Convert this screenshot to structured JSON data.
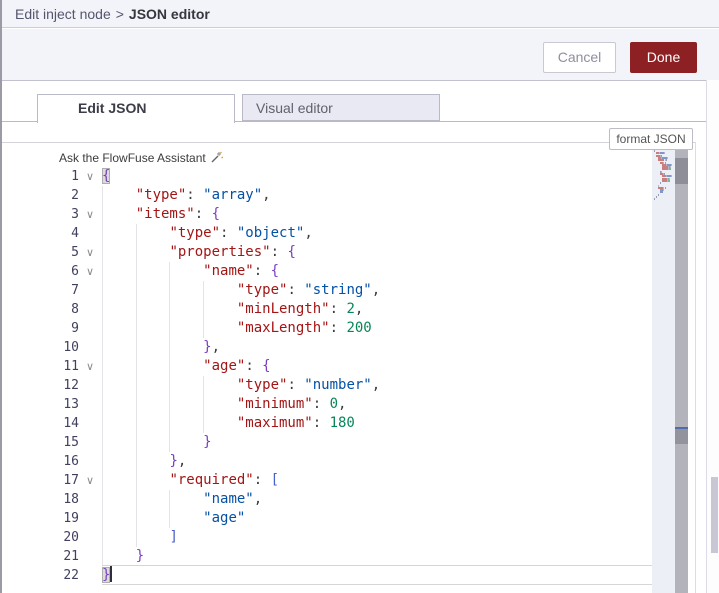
{
  "breadcrumb": {
    "parent": "Edit inject node",
    "separator": ">",
    "current": "JSON editor"
  },
  "toolbar": {
    "cancel": "Cancel",
    "done": "Done"
  },
  "tabs": {
    "edit_json": "Edit JSON",
    "visual_editor": "Visual editor"
  },
  "format_button": "format JSON",
  "assistant": {
    "hint": "Ask the FlowFuse Assistant"
  },
  "colors": {
    "accent_red": "#8C2023",
    "panel_bg": "#F3F4F9",
    "tab_inactive_bg": "#E8E9F2",
    "border": "#B9B9C7",
    "syntax_key": "#A31515",
    "syntax_string": "#0451A5",
    "syntax_number": "#098658",
    "syntax_brace": "#7A3FC0",
    "syntax_bracket": "#4660C4",
    "line_number": "#40405F"
  },
  "editor": {
    "cursor_line": 22,
    "lines": [
      {
        "n": 1,
        "fold": true,
        "indent": 0,
        "tokens": [
          {
            "c": "brace",
            "v": "{",
            "hl": true
          }
        ]
      },
      {
        "n": 2,
        "indent": 1,
        "tokens": [
          {
            "c": "key",
            "v": "\"type\""
          },
          {
            "c": "pun",
            "v": ": "
          },
          {
            "c": "str",
            "v": "\"array\""
          },
          {
            "c": "pun",
            "v": ","
          }
        ]
      },
      {
        "n": 3,
        "fold": true,
        "indent": 1,
        "tokens": [
          {
            "c": "key",
            "v": "\"items\""
          },
          {
            "c": "pun",
            "v": ": "
          },
          {
            "c": "brace",
            "v": "{"
          }
        ]
      },
      {
        "n": 4,
        "indent": 2,
        "tokens": [
          {
            "c": "key",
            "v": "\"type\""
          },
          {
            "c": "pun",
            "v": ": "
          },
          {
            "c": "str",
            "v": "\"object\""
          },
          {
            "c": "pun",
            "v": ","
          }
        ]
      },
      {
        "n": 5,
        "fold": true,
        "indent": 2,
        "tokens": [
          {
            "c": "key",
            "v": "\"properties\""
          },
          {
            "c": "pun",
            "v": ": "
          },
          {
            "c": "brace",
            "v": "{"
          }
        ]
      },
      {
        "n": 6,
        "fold": true,
        "indent": 3,
        "tokens": [
          {
            "c": "key",
            "v": "\"name\""
          },
          {
            "c": "pun",
            "v": ": "
          },
          {
            "c": "brace",
            "v": "{"
          }
        ]
      },
      {
        "n": 7,
        "indent": 4,
        "tokens": [
          {
            "c": "key",
            "v": "\"type\""
          },
          {
            "c": "pun",
            "v": ": "
          },
          {
            "c": "str",
            "v": "\"string\""
          },
          {
            "c": "pun",
            "v": ","
          }
        ]
      },
      {
        "n": 8,
        "indent": 4,
        "tokens": [
          {
            "c": "key",
            "v": "\"minLength\""
          },
          {
            "c": "pun",
            "v": ": "
          },
          {
            "c": "num",
            "v": "2"
          },
          {
            "c": "pun",
            "v": ","
          }
        ]
      },
      {
        "n": 9,
        "indent": 4,
        "tokens": [
          {
            "c": "key",
            "v": "\"maxLength\""
          },
          {
            "c": "pun",
            "v": ": "
          },
          {
            "c": "num",
            "v": "200"
          }
        ]
      },
      {
        "n": 10,
        "indent": 3,
        "tokens": [
          {
            "c": "brace",
            "v": "}"
          },
          {
            "c": "pun",
            "v": ","
          }
        ]
      },
      {
        "n": 11,
        "fold": true,
        "indent": 3,
        "tokens": [
          {
            "c": "key",
            "v": "\"age\""
          },
          {
            "c": "pun",
            "v": ": "
          },
          {
            "c": "brace",
            "v": "{"
          }
        ]
      },
      {
        "n": 12,
        "indent": 4,
        "tokens": [
          {
            "c": "key",
            "v": "\"type\""
          },
          {
            "c": "pun",
            "v": ": "
          },
          {
            "c": "str",
            "v": "\"number\""
          },
          {
            "c": "pun",
            "v": ","
          }
        ]
      },
      {
        "n": 13,
        "indent": 4,
        "tokens": [
          {
            "c": "key",
            "v": "\"minimum\""
          },
          {
            "c": "pun",
            "v": ": "
          },
          {
            "c": "num",
            "v": "0"
          },
          {
            "c": "pun",
            "v": ","
          }
        ]
      },
      {
        "n": 14,
        "indent": 4,
        "tokens": [
          {
            "c": "key",
            "v": "\"maximum\""
          },
          {
            "c": "pun",
            "v": ": "
          },
          {
            "c": "num",
            "v": "180"
          }
        ]
      },
      {
        "n": 15,
        "indent": 3,
        "tokens": [
          {
            "c": "brace",
            "v": "}"
          }
        ]
      },
      {
        "n": 16,
        "indent": 2,
        "tokens": [
          {
            "c": "brace",
            "v": "}"
          },
          {
            "c": "pun",
            "v": ","
          }
        ]
      },
      {
        "n": 17,
        "fold": true,
        "indent": 2,
        "tokens": [
          {
            "c": "key",
            "v": "\"required\""
          },
          {
            "c": "pun",
            "v": ": "
          },
          {
            "c": "brk",
            "v": "["
          }
        ]
      },
      {
        "n": 18,
        "indent": 3,
        "tokens": [
          {
            "c": "str",
            "v": "\"name\""
          },
          {
            "c": "pun",
            "v": ","
          }
        ]
      },
      {
        "n": 19,
        "indent": 3,
        "tokens": [
          {
            "c": "str",
            "v": "\"age\""
          }
        ]
      },
      {
        "n": 20,
        "indent": 2,
        "tokens": [
          {
            "c": "brk",
            "v": "]"
          }
        ]
      },
      {
        "n": 21,
        "indent": 1,
        "tokens": [
          {
            "c": "brace",
            "v": "}"
          }
        ]
      },
      {
        "n": 22,
        "indent": 0,
        "current": true,
        "tokens": [
          {
            "c": "brace",
            "v": "}",
            "hl": true,
            "cursor": true
          }
        ]
      }
    ]
  }
}
